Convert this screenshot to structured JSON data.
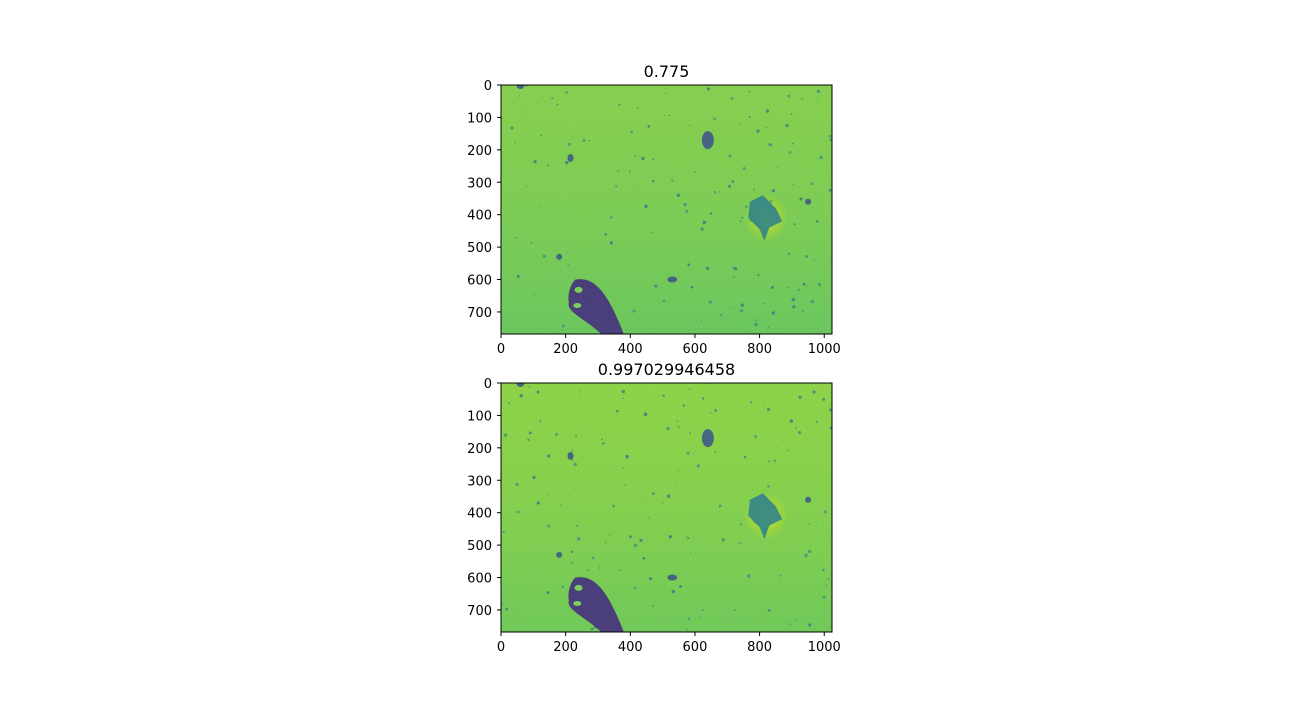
{
  "chart_data": [
    {
      "type": "heatmap",
      "title": "0.775",
      "xlabel": "",
      "ylabel": "",
      "xlim": [
        0,
        1024
      ],
      "ylim": [
        768,
        0
      ],
      "xticks": [
        0,
        200,
        400,
        600,
        800,
        1000
      ],
      "yticks": [
        0,
        100,
        200,
        300,
        400,
        500,
        600,
        700
      ],
      "colormap": "viridis",
      "grid": false
    },
    {
      "type": "heatmap",
      "title": "0.997029946458",
      "xlabel": "",
      "ylabel": "",
      "xlim": [
        0,
        1024
      ],
      "ylim": [
        768,
        0
      ],
      "xticks": [
        0,
        200,
        400,
        600,
        800,
        1000
      ],
      "yticks": [
        0,
        100,
        200,
        300,
        400,
        500,
        600,
        700
      ],
      "colormap": "viridis",
      "grid": false
    }
  ],
  "colors": {
    "background_green": "#86d04c",
    "dark_spot": "#3b528b",
    "deep_purple": "#46337e",
    "bright_yellow": "#c8e020",
    "teal": "#2a9d8f"
  }
}
